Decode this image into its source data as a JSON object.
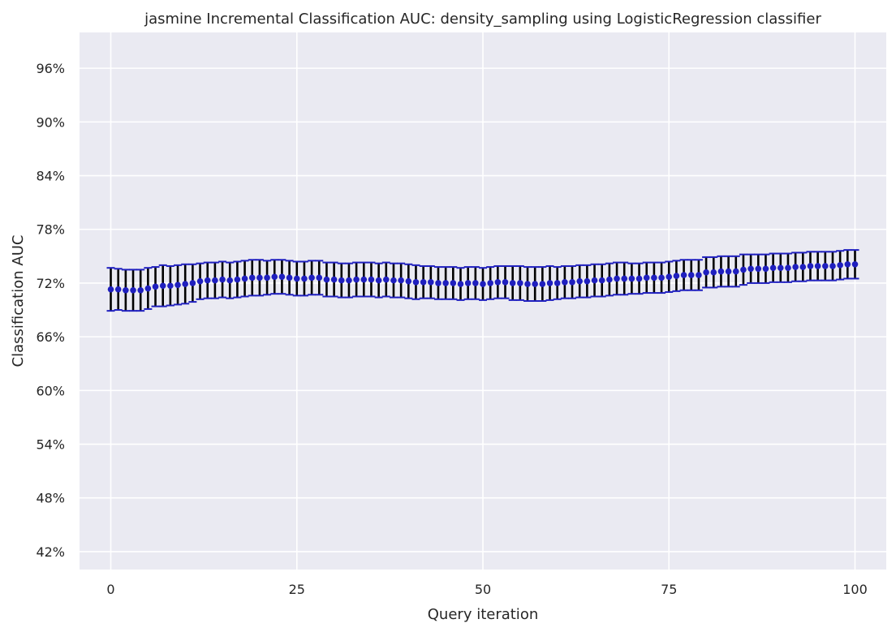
{
  "chart_data": {
    "type": "scatter",
    "title": "jasmine Incremental Classification AUC: density_sampling using LogisticRegression classifier",
    "xlabel": "Query iteration",
    "ylabel": "Classification AUC",
    "xlim": [
      -4.2,
      104.2
    ],
    "ylim": [
      0.4,
      1.0
    ],
    "xticks": [
      0,
      25,
      50,
      75,
      100
    ],
    "xtick_labels": [
      "0",
      "25",
      "50",
      "75",
      "100"
    ],
    "yticks": [
      0.42,
      0.48,
      0.54,
      0.6,
      0.66,
      0.72,
      0.78,
      0.84,
      0.9,
      0.96
    ],
    "ytick_labels": [
      "42%",
      "48%",
      "54%",
      "60%",
      "66%",
      "72%",
      "78%",
      "84%",
      "90%",
      "96%"
    ],
    "grid": true,
    "legend": "none",
    "colors": {
      "background": "#eaeaf2",
      "grid": "#ffffff",
      "point": "#1f1fbf",
      "errorbar": "#000000",
      "cap": "#1f1fbf"
    },
    "series": [
      {
        "x": [
          0,
          1,
          2,
          3,
          4,
          5,
          6,
          7,
          8,
          9,
          10,
          11,
          12,
          13,
          14,
          15,
          16,
          17,
          18,
          19,
          20,
          21,
          22,
          23,
          24,
          25,
          26,
          27,
          28,
          29,
          30,
          31,
          32,
          33,
          34,
          35,
          36,
          37,
          38,
          39,
          40,
          41,
          42,
          43,
          44,
          45,
          46,
          47,
          48,
          49,
          50,
          51,
          52,
          53,
          54,
          55,
          56,
          57,
          58,
          59,
          60,
          61,
          62,
          63,
          64,
          65,
          66,
          67,
          68,
          69,
          70,
          71,
          72,
          73,
          74,
          75,
          76,
          77,
          78,
          79,
          80,
          81,
          82,
          83,
          84,
          85,
          86,
          87,
          88,
          89,
          90,
          91,
          92,
          93,
          94,
          95,
          96,
          97,
          98,
          99,
          100
        ],
        "y": [
          0.713,
          0.713,
          0.712,
          0.712,
          0.712,
          0.714,
          0.716,
          0.717,
          0.717,
          0.718,
          0.719,
          0.72,
          0.722,
          0.723,
          0.723,
          0.724,
          0.723,
          0.724,
          0.725,
          0.726,
          0.726,
          0.726,
          0.727,
          0.727,
          0.726,
          0.725,
          0.725,
          0.726,
          0.726,
          0.724,
          0.724,
          0.723,
          0.723,
          0.724,
          0.724,
          0.724,
          0.723,
          0.724,
          0.723,
          0.723,
          0.722,
          0.721,
          0.721,
          0.721,
          0.72,
          0.72,
          0.72,
          0.719,
          0.72,
          0.72,
          0.719,
          0.72,
          0.721,
          0.721,
          0.72,
          0.72,
          0.719,
          0.719,
          0.719,
          0.72,
          0.72,
          0.721,
          0.721,
          0.722,
          0.722,
          0.723,
          0.723,
          0.724,
          0.725,
          0.725,
          0.725,
          0.725,
          0.726,
          0.726,
          0.726,
          0.727,
          0.728,
          0.729,
          0.729,
          0.729,
          0.732,
          0.732,
          0.733,
          0.733,
          0.733,
          0.735,
          0.736,
          0.736,
          0.736,
          0.737,
          0.737,
          0.737,
          0.738,
          0.738,
          0.739,
          0.739,
          0.739,
          0.739,
          0.74,
          0.741,
          0.741
        ],
        "yerr": [
          0.024,
          0.023,
          0.023,
          0.023,
          0.023,
          0.023,
          0.022,
          0.023,
          0.022,
          0.022,
          0.022,
          0.021,
          0.02,
          0.02,
          0.02,
          0.02,
          0.02,
          0.02,
          0.02,
          0.02,
          0.02,
          0.019,
          0.019,
          0.019,
          0.019,
          0.019,
          0.019,
          0.019,
          0.019,
          0.019,
          0.019,
          0.019,
          0.019,
          0.019,
          0.019,
          0.019,
          0.019,
          0.019,
          0.019,
          0.019,
          0.019,
          0.019,
          0.018,
          0.018,
          0.018,
          0.018,
          0.018,
          0.018,
          0.018,
          0.018,
          0.018,
          0.018,
          0.018,
          0.018,
          0.019,
          0.019,
          0.019,
          0.019,
          0.019,
          0.019,
          0.018,
          0.018,
          0.018,
          0.018,
          0.018,
          0.018,
          0.018,
          0.018,
          0.018,
          0.018,
          0.017,
          0.017,
          0.017,
          0.017,
          0.017,
          0.017,
          0.017,
          0.017,
          0.017,
          0.017,
          0.017,
          0.017,
          0.017,
          0.017,
          0.017,
          0.017,
          0.016,
          0.016,
          0.016,
          0.016,
          0.016,
          0.016,
          0.016,
          0.016,
          0.016,
          0.016,
          0.016,
          0.016,
          0.016,
          0.016,
          0.016
        ]
      }
    ]
  }
}
